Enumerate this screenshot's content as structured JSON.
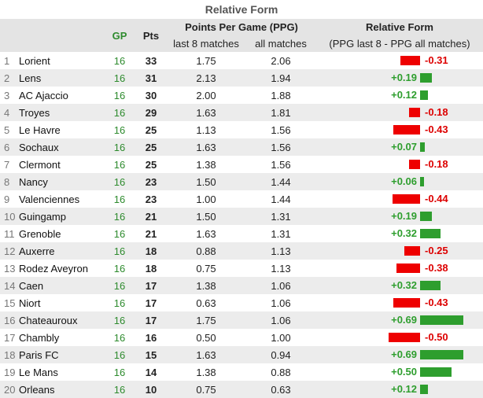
{
  "title": "Relative Form",
  "header": {
    "gp": "GP",
    "pts": "Pts",
    "ppg_group": "Points Per Game (PPG)",
    "last8": "last 8 matches",
    "all": "all matches",
    "form_group": "Relative Form",
    "form_sub": "(PPG last 8 - PPG all matches)"
  },
  "colors": {
    "positive": "#2e9e2e",
    "negative": "#ee0000",
    "gp": "#2e8b2e"
  },
  "rows": [
    {
      "rank": "1",
      "team": "Lorient",
      "gp": "16",
      "pts": "33",
      "last8": "1.75",
      "all": "2.06",
      "form": "-0.31",
      "diff": -0.31
    },
    {
      "rank": "2",
      "team": "Lens",
      "gp": "16",
      "pts": "31",
      "last8": "2.13",
      "all": "1.94",
      "form": "+0.19",
      "diff": 0.19
    },
    {
      "rank": "3",
      "team": "AC Ajaccio",
      "gp": "16",
      "pts": "30",
      "last8": "2.00",
      "all": "1.88",
      "form": "+0.12",
      "diff": 0.12
    },
    {
      "rank": "4",
      "team": "Troyes",
      "gp": "16",
      "pts": "29",
      "last8": "1.63",
      "all": "1.81",
      "form": "-0.18",
      "diff": -0.18
    },
    {
      "rank": "5",
      "team": "Le Havre",
      "gp": "16",
      "pts": "25",
      "last8": "1.13",
      "all": "1.56",
      "form": "-0.43",
      "diff": -0.43
    },
    {
      "rank": "6",
      "team": "Sochaux",
      "gp": "16",
      "pts": "25",
      "last8": "1.63",
      "all": "1.56",
      "form": "+0.07",
      "diff": 0.07
    },
    {
      "rank": "7",
      "team": "Clermont",
      "gp": "16",
      "pts": "25",
      "last8": "1.38",
      "all": "1.56",
      "form": "-0.18",
      "diff": -0.18
    },
    {
      "rank": "8",
      "team": "Nancy",
      "gp": "16",
      "pts": "23",
      "last8": "1.50",
      "all": "1.44",
      "form": "+0.06",
      "diff": 0.06
    },
    {
      "rank": "9",
      "team": "Valenciennes",
      "gp": "16",
      "pts": "23",
      "last8": "1.00",
      "all": "1.44",
      "form": "-0.44",
      "diff": -0.44
    },
    {
      "rank": "10",
      "team": "Guingamp",
      "gp": "16",
      "pts": "21",
      "last8": "1.50",
      "all": "1.31",
      "form": "+0.19",
      "diff": 0.19
    },
    {
      "rank": "11",
      "team": "Grenoble",
      "gp": "16",
      "pts": "21",
      "last8": "1.63",
      "all": "1.31",
      "form": "+0.32",
      "diff": 0.32
    },
    {
      "rank": "12",
      "team": "Auxerre",
      "gp": "16",
      "pts": "18",
      "last8": "0.88",
      "all": "1.13",
      "form": "-0.25",
      "diff": -0.25
    },
    {
      "rank": "13",
      "team": "Rodez Aveyron",
      "gp": "16",
      "pts": "18",
      "last8": "0.75",
      "all": "1.13",
      "form": "-0.38",
      "diff": -0.38
    },
    {
      "rank": "14",
      "team": "Caen",
      "gp": "16",
      "pts": "17",
      "last8": "1.38",
      "all": "1.06",
      "form": "+0.32",
      "diff": 0.32
    },
    {
      "rank": "15",
      "team": "Niort",
      "gp": "16",
      "pts": "17",
      "last8": "0.63",
      "all": "1.06",
      "form": "-0.43",
      "diff": -0.43
    },
    {
      "rank": "16",
      "team": "Chateauroux",
      "gp": "16",
      "pts": "17",
      "last8": "1.75",
      "all": "1.06",
      "form": "+0.69",
      "diff": 0.69
    },
    {
      "rank": "17",
      "team": "Chambly",
      "gp": "16",
      "pts": "16",
      "last8": "0.50",
      "all": "1.00",
      "form": "-0.50",
      "diff": -0.5
    },
    {
      "rank": "18",
      "team": "Paris FC",
      "gp": "16",
      "pts": "15",
      "last8": "1.63",
      "all": "0.94",
      "form": "+0.69",
      "diff": 0.69
    },
    {
      "rank": "19",
      "team": "Le Mans",
      "gp": "16",
      "pts": "14",
      "last8": "1.38",
      "all": "0.88",
      "form": "+0.50",
      "diff": 0.5
    },
    {
      "rank": "20",
      "team": "Orleans",
      "gp": "16",
      "pts": "10",
      "last8": "0.75",
      "all": "0.63",
      "form": "+0.12",
      "diff": 0.12
    }
  ]
}
